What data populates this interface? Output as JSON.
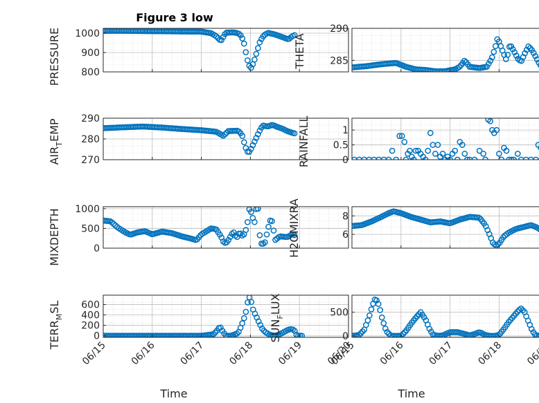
{
  "figure": {
    "title": "Figure 3 low",
    "xlabel": "Time",
    "marker_color": "#0072BD",
    "x_ticks": [
      "06/15",
      "06/16",
      "06/17",
      "06/18",
      "06/19",
      "06/20"
    ]
  },
  "chart_data": [
    {
      "type": "scatter",
      "title": "Figure 3 low",
      "ylabel": "PRESSURE",
      "ylim": [
        800,
        1025
      ],
      "yticks": [
        800,
        900,
        1000
      ],
      "xlabel": "",
      "xlim": [
        "2012-06-15",
        "2012-06-20"
      ],
      "x_ticks_labelled": false,
      "grid": true,
      "keys": [
        [
          0,
          1012
        ],
        [
          0.4,
          1012
        ],
        [
          0.8,
          1011
        ],
        [
          1.2,
          1010
        ],
        [
          1.6,
          1009
        ],
        [
          2.0,
          1008
        ],
        [
          2.2,
          1000
        ],
        [
          2.3,
          985
        ],
        [
          2.4,
          960
        ],
        [
          2.5,
          1003
        ],
        [
          2.65,
          1004
        ],
        [
          2.75,
          1000
        ],
        [
          2.82,
          985
        ],
        [
          2.88,
          940
        ],
        [
          2.93,
          870
        ],
        [
          2.98,
          830
        ],
        [
          3.02,
          820
        ],
        [
          3.08,
          860
        ],
        [
          3.14,
          910
        ],
        [
          3.2,
          960
        ],
        [
          3.28,
          990
        ],
        [
          3.36,
          1002
        ],
        [
          3.48,
          995
        ],
        [
          3.6,
          985
        ],
        [
          3.7,
          975
        ],
        [
          3.78,
          968
        ],
        [
          3.82,
          978
        ],
        [
          3.88,
          988
        ],
        [
          3.9,
          990
        ]
      ]
    },
    {
      "type": "scatter",
      "ylabel": "THETA",
      "ylim": [
        283.2,
        290
      ],
      "yticks": [
        285,
        290
      ],
      "xlim": [
        "2012-06-15",
        "2012-06-20"
      ],
      "grid": true,
      "keys": [
        [
          0,
          283.9
        ],
        [
          0.3,
          284.1
        ],
        [
          0.6,
          284.4
        ],
        [
          0.9,
          284.6
        ],
        [
          1.1,
          284.0
        ],
        [
          1.3,
          283.6
        ],
        [
          1.5,
          283.5
        ],
        [
          1.7,
          283.3
        ],
        [
          1.9,
          283.3
        ],
        [
          2.1,
          283.6
        ],
        [
          2.2,
          284.0
        ],
        [
          2.3,
          285.0
        ],
        [
          2.4,
          284.0
        ],
        [
          2.6,
          283.8
        ],
        [
          2.75,
          284.0
        ],
        [
          2.85,
          285.3
        ],
        [
          2.92,
          287.0
        ],
        [
          2.97,
          288.5
        ],
        [
          3.02,
          287.5
        ],
        [
          3.08,
          286.3
        ],
        [
          3.15,
          285.0
        ],
        [
          3.22,
          287.5
        ],
        [
          3.3,
          286.5
        ],
        [
          3.38,
          285.3
        ],
        [
          3.45,
          284.8
        ],
        [
          3.52,
          286.0
        ],
        [
          3.6,
          287.2
        ],
        [
          3.68,
          286.5
        ],
        [
          3.75,
          285.5
        ],
        [
          3.82,
          284.5
        ],
        [
          3.88,
          283.9
        ]
      ]
    },
    {
      "type": "scatter",
      "ylabel": "AIR_TEMP",
      "ylim": [
        270,
        290
      ],
      "yticks": [
        270,
        280,
        290
      ],
      "xlim": [
        "2012-06-15",
        "2012-06-20"
      ],
      "grid": true,
      "keys": [
        [
          0,
          285.2
        ],
        [
          0.4,
          285.6
        ],
        [
          0.8,
          286.0
        ],
        [
          1.2,
          285.5
        ],
        [
          1.6,
          284.8
        ],
        [
          2.0,
          284.2
        ],
        [
          2.3,
          283.5
        ],
        [
          2.45,
          281.5
        ],
        [
          2.55,
          283.8
        ],
        [
          2.75,
          284.0
        ],
        [
          2.83,
          282.0
        ],
        [
          2.9,
          276.0
        ],
        [
          2.96,
          273.0
        ],
        [
          3.02,
          275.5
        ],
        [
          3.1,
          279.5
        ],
        [
          3.18,
          283.5
        ],
        [
          3.25,
          286.5
        ],
        [
          3.35,
          286.0
        ],
        [
          3.45,
          286.8
        ],
        [
          3.55,
          285.8
        ],
        [
          3.65,
          285.0
        ],
        [
          3.75,
          283.8
        ],
        [
          3.85,
          283.0
        ],
        [
          3.9,
          282.7
        ]
      ]
    },
    {
      "type": "scatter",
      "ylabel": "RAINFALL",
      "ylim": [
        0,
        1.4
      ],
      "yticks": [
        0,
        0.5,
        1
      ],
      "ytick_labels": [
        "0",
        "0.5",
        "1"
      ],
      "xlim": [
        "2012-06-15",
        "2012-06-20"
      ],
      "grid": true,
      "values": [
        [
          0.05,
          0
        ],
        [
          0.15,
          0
        ],
        [
          0.25,
          0
        ],
        [
          0.35,
          0
        ],
        [
          0.45,
          0
        ],
        [
          0.55,
          0
        ],
        [
          0.65,
          0
        ],
        [
          0.75,
          0
        ],
        [
          0.82,
          0.3
        ],
        [
          0.9,
          0
        ],
        [
          0.97,
          0.8
        ],
        [
          1.02,
          0.8
        ],
        [
          1.07,
          0.6
        ],
        [
          1.1,
          0
        ],
        [
          1.14,
          0.2
        ],
        [
          1.18,
          0.3
        ],
        [
          1.22,
          0.1
        ],
        [
          1.26,
          0
        ],
        [
          1.3,
          0.3
        ],
        [
          1.35,
          0.3
        ],
        [
          1.4,
          0.2
        ],
        [
          1.45,
          0.1
        ],
        [
          1.5,
          0
        ],
        [
          1.55,
          0.3
        ],
        [
          1.6,
          0.9
        ],
        [
          1.65,
          0.5
        ],
        [
          1.7,
          0.2
        ],
        [
          1.75,
          0.5
        ],
        [
          1.8,
          0.1
        ],
        [
          1.85,
          0.2
        ],
        [
          1.9,
          0
        ],
        [
          1.95,
          0.1
        ],
        [
          2.0,
          0
        ],
        [
          2.05,
          0.2
        ],
        [
          2.1,
          0.3
        ],
        [
          2.15,
          0
        ],
        [
          2.2,
          0.6
        ],
        [
          2.25,
          0.5
        ],
        [
          2.3,
          0.2
        ],
        [
          2.35,
          0
        ],
        [
          2.4,
          0
        ],
        [
          2.5,
          0
        ],
        [
          2.6,
          0.3
        ],
        [
          2.68,
          0.2
        ],
        [
          2.72,
          0
        ],
        [
          2.78,
          1.35
        ],
        [
          2.82,
          1.3
        ],
        [
          2.86,
          1.0
        ],
        [
          2.9,
          0.9
        ],
        [
          2.95,
          1.0
        ],
        [
          3.0,
          0.2
        ],
        [
          3.05,
          0
        ],
        [
          3.1,
          0.4
        ],
        [
          3.15,
          0.3
        ],
        [
          3.2,
          0
        ],
        [
          3.25,
          0
        ],
        [
          3.3,
          0
        ],
        [
          3.38,
          0.2
        ],
        [
          3.45,
          0
        ],
        [
          3.55,
          0
        ],
        [
          3.65,
          0
        ],
        [
          3.75,
          0
        ],
        [
          3.8,
          0.5
        ],
        [
          3.85,
          0.4
        ],
        [
          3.9,
          0.2
        ],
        [
          3.95,
          0
        ],
        [
          4.05,
          0
        ]
      ]
    },
    {
      "type": "scatter",
      "ylabel": "MIXDEPTH",
      "ylim": [
        0,
        1050
      ],
      "yticks": [
        0,
        500,
        1000
      ],
      "xlim": [
        "2012-06-15",
        "2012-06-20"
      ],
      "grid": true,
      "keys": [
        [
          0,
          700
        ],
        [
          0.15,
          680
        ],
        [
          0.3,
          520
        ],
        [
          0.45,
          400
        ],
        [
          0.55,
          340
        ],
        [
          0.7,
          400
        ],
        [
          0.85,
          430
        ],
        [
          1.0,
          350
        ],
        [
          1.2,
          420
        ],
        [
          1.4,
          380
        ],
        [
          1.6,
          300
        ],
        [
          1.8,
          240
        ],
        [
          1.9,
          200
        ],
        [
          2.0,
          350
        ],
        [
          2.2,
          500
        ],
        [
          2.3,
          480
        ],
        [
          2.4,
          300
        ],
        [
          2.45,
          160
        ],
        [
          2.5,
          120
        ],
        [
          2.55,
          200
        ],
        [
          2.65,
          420
        ],
        [
          2.72,
          260
        ],
        [
          2.78,
          400
        ],
        [
          2.85,
          300
        ],
        [
          2.9,
          420
        ],
        [
          2.95,
          700
        ],
        [
          2.98,
          1000
        ],
        [
          3.02,
          900
        ],
        [
          3.08,
          620
        ],
        [
          3.12,
          990
        ],
        [
          3.16,
          1000
        ],
        [
          3.2,
          130
        ],
        [
          3.25,
          100
        ],
        [
          3.3,
          150
        ],
        [
          3.35,
          450
        ],
        [
          3.4,
          700
        ],
        [
          3.45,
          680
        ],
        [
          3.5,
          200
        ],
        [
          3.6,
          300
        ],
        [
          3.75,
          280
        ],
        [
          3.85,
          350
        ],
        [
          3.9,
          330
        ]
      ]
    },
    {
      "type": "scatter",
      "ylabel": "H2OMIXRA",
      "ylim": [
        4.5,
        9
      ],
      "yticks": [
        6,
        8
      ],
      "xlim": [
        "2012-06-15",
        "2012-06-20"
      ],
      "grid": true,
      "keys": [
        [
          0,
          6.9
        ],
        [
          0.2,
          7.0
        ],
        [
          0.4,
          7.4
        ],
        [
          0.6,
          7.9
        ],
        [
          0.75,
          8.3
        ],
        [
          0.85,
          8.5
        ],
        [
          1.0,
          8.3
        ],
        [
          1.2,
          7.9
        ],
        [
          1.4,
          7.6
        ],
        [
          1.6,
          7.3
        ],
        [
          1.8,
          7.4
        ],
        [
          2.0,
          7.2
        ],
        [
          2.2,
          7.6
        ],
        [
          2.4,
          7.9
        ],
        [
          2.6,
          7.8
        ],
        [
          2.72,
          7.0
        ],
        [
          2.82,
          5.8
        ],
        [
          2.88,
          5.0
        ],
        [
          2.94,
          4.8
        ],
        [
          3.0,
          5.0
        ],
        [
          3.1,
          5.8
        ],
        [
          3.2,
          6.2
        ],
        [
          3.35,
          6.6
        ],
        [
          3.5,
          6.8
        ],
        [
          3.65,
          7.0
        ],
        [
          3.75,
          6.8
        ],
        [
          3.85,
          6.5
        ],
        [
          3.9,
          6.6
        ]
      ]
    },
    {
      "type": "scatter",
      "ylabel": "TERR_MSL",
      "ylim": [
        -30,
        780
      ],
      "yticks": [
        0,
        200,
        400,
        600
      ],
      "xlim": [
        "2012-06-15",
        "2012-06-20"
      ],
      "grid": true,
      "keys": [
        [
          0,
          0
        ],
        [
          0.5,
          0
        ],
        [
          1.0,
          0
        ],
        [
          1.5,
          0
        ],
        [
          2.0,
          0
        ],
        [
          2.25,
          30
        ],
        [
          2.32,
          100
        ],
        [
          2.38,
          180
        ],
        [
          2.44,
          80
        ],
        [
          2.5,
          0
        ],
        [
          2.6,
          0
        ],
        [
          2.75,
          50
        ],
        [
          2.82,
          200
        ],
        [
          2.88,
          360
        ],
        [
          2.92,
          500
        ],
        [
          2.96,
          720
        ],
        [
          3.0,
          750
        ],
        [
          3.04,
          540
        ],
        [
          3.08,
          450
        ],
        [
          3.12,
          370
        ],
        [
          3.18,
          250
        ],
        [
          3.25,
          120
        ],
        [
          3.32,
          60
        ],
        [
          3.4,
          20
        ],
        [
          3.5,
          0
        ],
        [
          3.6,
          30
        ],
        [
          3.7,
          80
        ],
        [
          3.78,
          120
        ],
        [
          3.85,
          130
        ],
        [
          3.9,
          100
        ],
        [
          3.95,
          0
        ],
        [
          4.05,
          0
        ]
      ]
    },
    {
      "type": "scatter",
      "ylabel": "SUN_FLUX",
      "ylim": [
        -30,
        860
      ],
      "yticks": [
        0,
        500
      ],
      "xlim": [
        "2012-06-15",
        "2012-06-20"
      ],
      "grid": true,
      "keys": [
        [
          0,
          0
        ],
        [
          0.15,
          20
        ],
        [
          0.25,
          130
        ],
        [
          0.35,
          400
        ],
        [
          0.42,
          650
        ],
        [
          0.48,
          800
        ],
        [
          0.55,
          650
        ],
        [
          0.62,
          350
        ],
        [
          0.7,
          100
        ],
        [
          0.8,
          0
        ],
        [
          1.0,
          0
        ],
        [
          1.1,
          100
        ],
        [
          1.2,
          250
        ],
        [
          1.3,
          380
        ],
        [
          1.4,
          500
        ],
        [
          1.5,
          350
        ],
        [
          1.58,
          150
        ],
        [
          1.65,
          30
        ],
        [
          1.75,
          0
        ],
        [
          1.85,
          10
        ],
        [
          2.0,
          80
        ],
        [
          2.15,
          80
        ],
        [
          2.3,
          40
        ],
        [
          2.4,
          10
        ],
        [
          2.5,
          40
        ],
        [
          2.6,
          80
        ],
        [
          2.72,
          20
        ],
        [
          2.82,
          0
        ],
        [
          2.9,
          0
        ],
        [
          3.0,
          20
        ],
        [
          3.1,
          150
        ],
        [
          3.2,
          300
        ],
        [
          3.3,
          420
        ],
        [
          3.4,
          540
        ],
        [
          3.45,
          580
        ],
        [
          3.52,
          500
        ],
        [
          3.6,
          300
        ],
        [
          3.68,
          100
        ],
        [
          3.75,
          10
        ],
        [
          3.85,
          0
        ],
        [
          3.95,
          0
        ]
      ]
    }
  ]
}
